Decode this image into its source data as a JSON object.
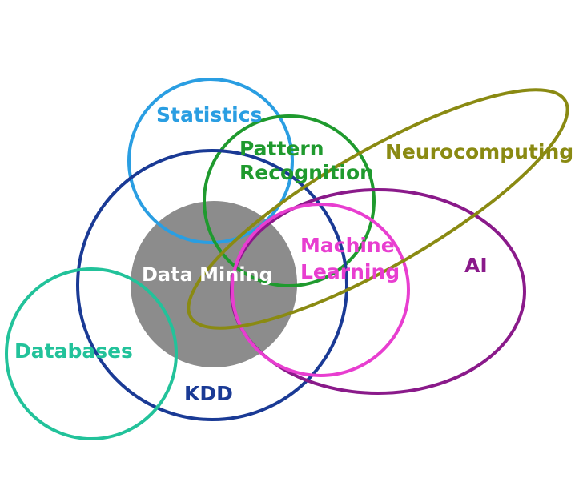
{
  "diagram": {
    "labels": {
      "statistics": "Statistics",
      "pattern_recognition_line1": "Pattern",
      "pattern_recognition_line2": "Recognition",
      "neurocomputing": "Neurocomputing",
      "machine_learning_line1": "Machine",
      "machine_learning_line2": "Learning",
      "ai": "AI",
      "data_mining": "Data Mining",
      "databases": "Databases",
      "kdd": "KDD"
    },
    "colors": {
      "statistics": "#2a9ee2",
      "pattern_recognition": "#1f9a2e",
      "neurocomputing": "#8a8a12",
      "machine_learning": "#e83ed0",
      "ai": "#8a1a8a",
      "data_mining_fill": "#8c8c8c",
      "data_mining_text": "#ffffff",
      "databases": "#22c29a",
      "kdd": "#1a3a95"
    }
  }
}
